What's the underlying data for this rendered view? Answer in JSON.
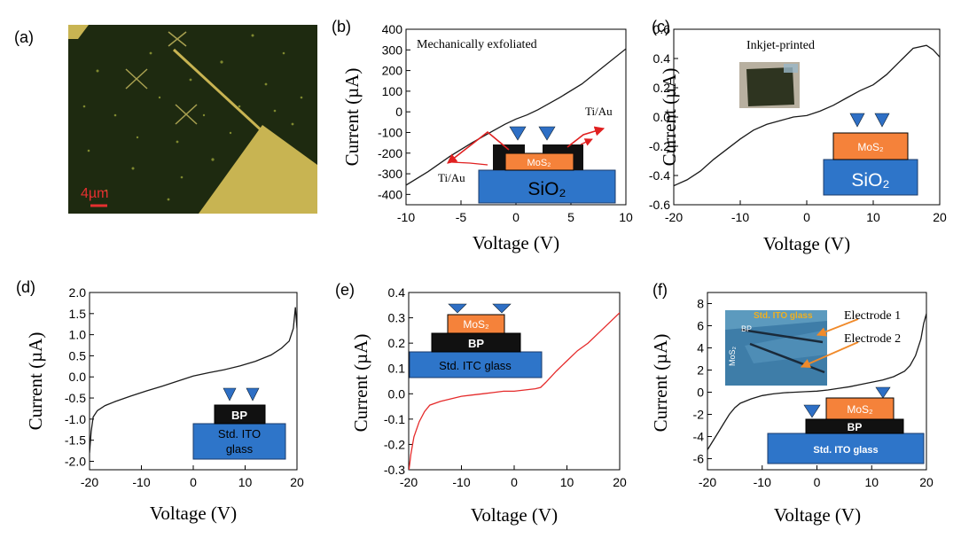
{
  "panel_labels": {
    "a": "(a)",
    "b": "(b)",
    "c": "(c)",
    "d": "(d)",
    "e": "(e)",
    "f": "(f)"
  },
  "micrograph": {
    "scale_bar": "4µm"
  },
  "colors": {
    "substrate_blue": "#2e75c9",
    "mos2_orange": "#f5823a",
    "bp_black": "#111111",
    "tip_blue": "#2e6fc5",
    "arrow_red": "#e02020",
    "trace_black": "#1a1a1a",
    "trace_red": "#e52b2b",
    "micro_bg": "#1e2a10",
    "micro_gold": "#c8b452",
    "ito_photo_bg": "#3e7da8"
  },
  "chart_data": [
    {
      "id": "b",
      "type": "line",
      "title": "Mechanically exfoliated",
      "xlabel": "Voltage (V)",
      "ylabel": "Current (µA)",
      "xlim": [
        -10,
        10
      ],
      "ylim": [
        -450,
        400
      ],
      "xticks": [
        "-10",
        "-5",
        "0",
        "5",
        "10"
      ],
      "yticks": [
        "-400",
        "-300",
        "-200",
        "-100",
        "0",
        "100",
        "200",
        "300",
        "400"
      ],
      "series": [
        {
          "name": "I-V",
          "color": "#1a1a1a",
          "x": [
            -10,
            -8,
            -6,
            -4,
            -2,
            -1,
            0,
            1,
            2,
            4,
            6,
            8,
            10
          ],
          "y": [
            -355,
            -290,
            -215,
            -150,
            -90,
            -60,
            -35,
            -15,
            10,
            70,
            135,
            220,
            305
          ]
        }
      ],
      "inset": {
        "substrate": "SiO₂",
        "layer": "MoS₂",
        "contact_left": "Ti/Au",
        "contact_right": "Ti/Au"
      }
    },
    {
      "id": "c",
      "type": "line",
      "title": "Inkjet-printed",
      "xlabel": "Voltage (V)",
      "ylabel": "Current (µA)",
      "xlim": [
        -20,
        20
      ],
      "ylim": [
        -0.6,
        0.6
      ],
      "xticks": [
        "-20",
        "-10",
        "0",
        "10",
        "20"
      ],
      "yticks": [
        "-0.6",
        "-0.4",
        "-0.2",
        "0.0",
        "0.2",
        "0.4",
        "0.6"
      ],
      "series": [
        {
          "name": "I-V",
          "color": "#1a1a1a",
          "x": [
            -20,
            -18,
            -16,
            -14,
            -12,
            -10,
            -8,
            -6,
            -4,
            -2,
            0,
            2,
            4,
            6,
            8,
            10,
            12,
            14,
            16,
            18,
            19,
            20
          ],
          "y": [
            -0.47,
            -0.43,
            -0.37,
            -0.29,
            -0.22,
            -0.15,
            -0.09,
            -0.05,
            -0.025,
            0.0,
            0.01,
            0.04,
            0.08,
            0.13,
            0.18,
            0.22,
            0.29,
            0.38,
            0.47,
            0.49,
            0.46,
            0.41
          ]
        }
      ],
      "inset": {
        "substrate": "SiO₂",
        "layer": "MoS₂"
      }
    },
    {
      "id": "d",
      "type": "line",
      "xlabel": "Voltage (V)",
      "ylabel": "Current (µA)",
      "xlim": [
        -20,
        20
      ],
      "ylim": [
        -2.2,
        2.0
      ],
      "xticks": [
        "-20",
        "-10",
        "0",
        "10",
        "20"
      ],
      "yticks": [
        "-2.0",
        "-1.5",
        "-1.0",
        "-0.5",
        "0.0",
        "0.5",
        "1.0",
        "1.5",
        "2.0"
      ],
      "series": [
        {
          "name": "I-V",
          "color": "#1a1a1a",
          "x": [
            -20,
            -19.7,
            -19.3,
            -18.5,
            -17,
            -15,
            -12,
            -9,
            -6,
            -3,
            0,
            3,
            6,
            9,
            12,
            15,
            17,
            18.5,
            19.3,
            19.7,
            20
          ],
          "y": [
            -1.8,
            -1.3,
            -0.95,
            -0.8,
            -0.68,
            -0.58,
            -0.45,
            -0.33,
            -0.22,
            -0.1,
            0.02,
            0.1,
            0.17,
            0.26,
            0.37,
            0.52,
            0.68,
            0.85,
            1.15,
            1.65,
            1.15
          ]
        }
      ],
      "inset": {
        "substrate_line1": "Std. ITO",
        "substrate_line2": "glass",
        "layer": "BP"
      }
    },
    {
      "id": "e",
      "type": "line",
      "xlabel": "Voltage (V)",
      "ylabel": "Current (µA)",
      "xlim": [
        -20,
        20
      ],
      "ylim": [
        -0.3,
        0.4
      ],
      "xticks": [
        "-20",
        "-10",
        "0",
        "10",
        "20"
      ],
      "yticks": [
        "-0.3",
        "-0.2",
        "-0.1",
        "0.0",
        "0.1",
        "0.2",
        "0.3",
        "0.4"
      ],
      "series": [
        {
          "name": "I-V",
          "color": "#e52b2b",
          "x": [
            -20,
            -19.6,
            -19,
            -18,
            -17,
            -16,
            -14,
            -12,
            -10,
            -8,
            -6,
            -4,
            -2,
            0,
            2,
            4,
            5,
            6,
            8,
            10,
            12,
            14,
            16,
            18,
            20
          ],
          "y": [
            -0.31,
            -0.24,
            -0.17,
            -0.11,
            -0.07,
            -0.045,
            -0.03,
            -0.02,
            -0.01,
            -0.005,
            0.0,
            0.005,
            0.01,
            0.01,
            0.015,
            0.02,
            0.025,
            0.045,
            0.09,
            0.13,
            0.17,
            0.2,
            0.24,
            0.28,
            0.32
          ]
        }
      ],
      "inset": {
        "substrate": "Std. ITC glass",
        "layer_top": "MoS₂",
        "layer_mid": "BP"
      }
    },
    {
      "id": "f",
      "type": "line",
      "xlabel": "Voltage (V)",
      "ylabel": "Current (µA)",
      "xlim": [
        -20,
        20
      ],
      "ylim": [
        -7,
        9
      ],
      "xticks": [
        "-20",
        "-10",
        "0",
        "10",
        "20"
      ],
      "yticks": [
        "-6",
        "-4",
        "-2",
        "0",
        "2",
        "4",
        "6",
        "8"
      ],
      "series": [
        {
          "name": "I-V",
          "color": "#1a1a1a",
          "x": [
            -20,
            -19,
            -18,
            -17,
            -16,
            -15,
            -14,
            -12,
            -10,
            -8,
            -6,
            -4,
            -2,
            0,
            2,
            4,
            6,
            8,
            10,
            12,
            14,
            16,
            17,
            18,
            19,
            19.5,
            20
          ],
          "y": [
            -5.2,
            -4.4,
            -3.6,
            -2.8,
            -2.0,
            -1.4,
            -1.0,
            -0.6,
            -0.3,
            -0.15,
            -0.05,
            0.0,
            0.05,
            0.1,
            0.2,
            0.35,
            0.5,
            0.7,
            0.9,
            1.1,
            1.4,
            1.9,
            2.4,
            3.3,
            4.8,
            6.2,
            7.1
          ]
        }
      ],
      "inset": {
        "substrate": "Std. ITO glass",
        "layer_top": "MoS₂",
        "layer_mid": "BP",
        "photo_title": "Std. ITO glass",
        "photo_bp": "BP",
        "photo_mos2": "MoS₂",
        "electrode1": "Electrode 1",
        "electrode2": "Electrode 2"
      }
    }
  ]
}
